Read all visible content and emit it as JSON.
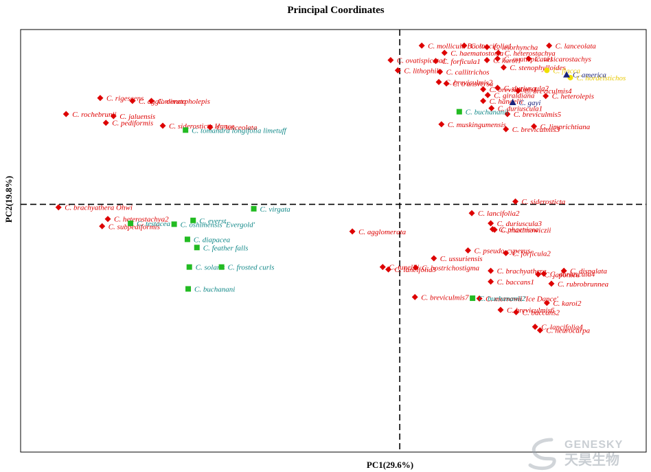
{
  "chart_data": {
    "type": "scatter",
    "title": "Principal Coordinates",
    "xlabel": "PC1(29.6%)",
    "ylabel": "PC2(19.8%)",
    "xlim": [
      -1.0,
      0.65
    ],
    "ylim": [
      -0.85,
      0.6
    ],
    "grid": false,
    "reference_lines": {
      "x": 0,
      "y": 0,
      "style": "dashed"
    },
    "series": [
      {
        "marker": "diamond",
        "color": "#dd0000",
        "points": [
          {
            "label": "C. mollicula Boott",
            "x": 0.058,
            "y": 0.545
          },
          {
            "label": "C. lancifolia1",
            "x": 0.17,
            "y": 0.545
          },
          {
            "label": "C. leiorhyncha",
            "x": 0.23,
            "y": 0.54
          },
          {
            "label": "C. lanceolata",
            "x": 0.394,
            "y": 0.545
          },
          {
            "label": "C. haematostoma",
            "x": 0.118,
            "y": 0.52
          },
          {
            "label": "C. heterostachya",
            "x": 0.26,
            "y": 0.52
          },
          {
            "label": "C. ovatispicata1",
            "x": 0.258,
            "y": 0.5
          },
          {
            "label": "C. vesicarostachys",
            "x": 0.34,
            "y": 0.5
          },
          {
            "label": "C. ovatispicata1",
            "x": -0.024,
            "y": 0.495
          },
          {
            "label": "C. forficula1",
            "x": 0.095,
            "y": 0.492
          },
          {
            "label": "C. karoi1",
            "x": 0.23,
            "y": 0.495
          },
          {
            "label": "C. stenophylloides",
            "x": 0.274,
            "y": 0.47
          },
          {
            "label": "C. lithophila",
            "x": -0.005,
            "y": 0.46
          },
          {
            "label": "C. callitrichos",
            "x": 0.106,
            "y": 0.455
          },
          {
            "label": "C. breviculmis2",
            "x": 0.103,
            "y": 0.42
          },
          {
            "label": "C. transversa",
            "x": 0.123,
            "y": 0.415
          },
          {
            "label": "C. duriuscula2",
            "x": 0.258,
            "y": 0.4
          },
          {
            "label": "C. breviculmis1",
            "x": 0.22,
            "y": 0.395
          },
          {
            "label": "C. breviculmis4",
            "x": 0.312,
            "y": 0.39
          },
          {
            "label": "C. giraldiana",
            "x": 0.232,
            "y": 0.375
          },
          {
            "label": "C. heterolepis",
            "x": 0.385,
            "y": 0.372
          },
          {
            "label": "C. handelii",
            "x": 0.22,
            "y": 0.355
          },
          {
            "label": "C. duriuscula1",
            "x": 0.242,
            "y": 0.33
          },
          {
            "label": "C. breviculmis5",
            "x": 0.284,
            "y": 0.31
          },
          {
            "label": "C. muskingumensis",
            "x": 0.11,
            "y": 0.275
          },
          {
            "label": "C. limprichtiana",
            "x": 0.354,
            "y": 0.268
          },
          {
            "label": "C. breviculmis3",
            "x": 0.28,
            "y": 0.258
          },
          {
            "label": "C. rigescens",
            "x": -0.79,
            "y": 0.365
          },
          {
            "label": "C. agglomerata",
            "x": -0.705,
            "y": 0.355
          },
          {
            "label": "C. dimorpholepis",
            "x": -0.655,
            "y": 0.355
          },
          {
            "label": "C. rochebrunii",
            "x": -0.88,
            "y": 0.31
          },
          {
            "label": "C. jaluensis",
            "x": -0.755,
            "y": 0.303
          },
          {
            "label": "C. pediformis",
            "x": -0.775,
            "y": 0.28
          },
          {
            "label": "C. siderosticta Hance",
            "x": -0.625,
            "y": 0.27
          },
          {
            "label": "C. lanceolata",
            "x": -0.5,
            "y": 0.265
          },
          {
            "label": "C. siderosticta",
            "x": 0.305,
            "y": 0.01
          },
          {
            "label": "C. brachyathera Ohwi",
            "x": -0.9,
            "y": -0.01
          },
          {
            "label": "C. lancifolia2",
            "x": 0.19,
            "y": -0.03
          },
          {
            "label": "C. heterostachya2",
            "x": -0.77,
            "y": -0.05
          },
          {
            "label": "C. duriuscula3",
            "x": 0.24,
            "y": -0.065
          },
          {
            "label": "C. subpediformis",
            "x": -0.785,
            "y": -0.075
          },
          {
            "label": "C. phaenicea",
            "x": 0.245,
            "y": -0.085
          },
          {
            "label": "C. maximowiczii",
            "x": 0.25,
            "y": -0.087
          },
          {
            "label": "C. agglomerata",
            "x": -0.125,
            "y": -0.093
          },
          {
            "label": "C. pseudo-cyperus",
            "x": 0.18,
            "y": -0.158
          },
          {
            "label": "C. forficula2",
            "x": 0.28,
            "y": -0.167
          },
          {
            "label": "C. ussuriensis",
            "x": 0.09,
            "y": -0.185
          },
          {
            "label": "C. tunellii",
            "x": -0.045,
            "y": -0.215
          },
          {
            "label": "C. lancifolia3",
            "x": -0.03,
            "y": -0.223
          },
          {
            "label": "C. bostrichostigma",
            "x": 0.042,
            "y": -0.217
          },
          {
            "label": "C. brachyathera",
            "x": 0.24,
            "y": -0.228
          },
          {
            "label": "C. dispalata",
            "x": 0.433,
            "y": -0.228
          },
          {
            "label": "C. duriuscula4",
            "x": 0.38,
            "y": -0.238
          },
          {
            "label": "C. japonica",
            "x": 0.365,
            "y": -0.24
          },
          {
            "label": "C. baccans1",
            "x": 0.24,
            "y": -0.265
          },
          {
            "label": "C. rubrobrunnea",
            "x": 0.4,
            "y": -0.272
          },
          {
            "label": "C. breviculmis7",
            "x": 0.04,
            "y": -0.318
          },
          {
            "label": "C. morrowii 'Ice Dance'",
            "x": 0.21,
            "y": -0.323
          },
          {
            "label": "C. karoi2",
            "x": 0.388,
            "y": -0.338
          },
          {
            "label": "C. breviculmis6",
            "x": 0.266,
            "y": -0.362
          },
          {
            "label": "C. baccans2",
            "x": 0.307,
            "y": -0.37
          },
          {
            "label": "C. lancifolia4",
            "x": 0.357,
            "y": -0.42
          },
          {
            "label": "C. neurocarpa",
            "x": 0.37,
            "y": -0.432
          }
        ]
      },
      {
        "marker": "square",
        "color": "#22bb22",
        "points": [
          {
            "label": "C. buchananii",
            "x": 0.157,
            "y": 0.318
          },
          {
            "label": "C. tomandra longifolia limetuff",
            "x": -0.565,
            "y": 0.255
          },
          {
            "label": "C. virgata",
            "x": -0.385,
            "y": -0.015
          },
          {
            "label": "C. everst",
            "x": -0.545,
            "y": -0.055
          },
          {
            "label": "C. testacea",
            "x": -0.71,
            "y": -0.065
          },
          {
            "label": "C. oshimensis 'Evergold'",
            "x": -0.595,
            "y": -0.068
          },
          {
            "label": "C. diapacea",
            "x": -0.56,
            "y": -0.12
          },
          {
            "label": "C. feather falls",
            "x": -0.535,
            "y": -0.148
          },
          {
            "label": "C. solaris",
            "x": -0.555,
            "y": -0.215
          },
          {
            "label": "C. frosted curls",
            "x": -0.47,
            "y": -0.215
          },
          {
            "label": "C. buchanani",
            "x": -0.558,
            "y": -0.29
          },
          {
            "label": "C. buchananii2",
            "x": 0.192,
            "y": -0.322
          }
        ]
      },
      {
        "marker": "circle",
        "color": "#f0e000",
        "points": [
          {
            "label": "C. flacca",
            "x": 0.388,
            "y": 0.46
          },
          {
            "label": "C. hordeistichos",
            "x": 0.45,
            "y": 0.435
          }
        ]
      },
      {
        "marker": "triangle",
        "color": "#1a237e",
        "points": [
          {
            "label": "C. america",
            "x": 0.44,
            "y": 0.445
          },
          {
            "label": "C. gayi",
            "x": 0.298,
            "y": 0.35
          }
        ]
      }
    ]
  },
  "watermark": {
    "brand": "GENESKY",
    "subtitle": "天昊生物",
    "icon": "genesky-swirl-logo-icon"
  }
}
